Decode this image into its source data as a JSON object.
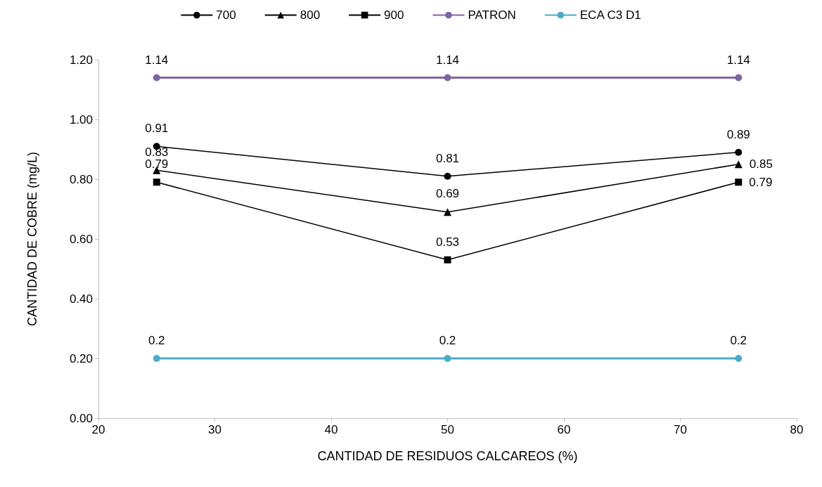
{
  "chart_data": {
    "type": "line",
    "xlabel": "CANTIDAD DE RESIDUOS CALCAREOS (%)",
    "ylabel": "CANTIDAD DE COBRE (mg/L)",
    "x": [
      25,
      50,
      75
    ],
    "series": [
      {
        "name": "700",
        "color": "#000000",
        "marker": "circle",
        "values": [
          0.91,
          0.81,
          0.89
        ]
      },
      {
        "name": "800",
        "color": "#000000",
        "marker": "triangle",
        "values": [
          0.83,
          0.69,
          0.85
        ]
      },
      {
        "name": "900",
        "color": "#000000",
        "marker": "square",
        "values": [
          0.79,
          0.53,
          0.79
        ]
      },
      {
        "name": "PATRON",
        "color": "#8064a2",
        "marker": "circle",
        "values": [
          1.14,
          1.14,
          1.14
        ]
      },
      {
        "name": "ECA C3 D1",
        "color": "#4bacc6",
        "marker": "circle",
        "values": [
          0.2,
          0.2,
          0.2
        ]
      }
    ],
    "xlim": [
      20,
      80
    ],
    "xticks": [
      20,
      30,
      40,
      50,
      60,
      70,
      80
    ],
    "ylim": [
      0,
      1.2
    ],
    "yticks": [
      {
        "value": 0,
        "label": "0.00"
      },
      {
        "value": 0.2,
        "label": "0.20"
      },
      {
        "value": 0.4,
        "label": "0.40"
      },
      {
        "value": 0.6,
        "label": "0.60"
      },
      {
        "value": 0.8,
        "label": "0.80"
      },
      {
        "value": 1,
        "label": "1.00"
      },
      {
        "value": 1.2,
        "label": "1.20"
      }
    ],
    "grid": false,
    "legend": "top",
    "data_labels": true,
    "line_style": "solid"
  }
}
